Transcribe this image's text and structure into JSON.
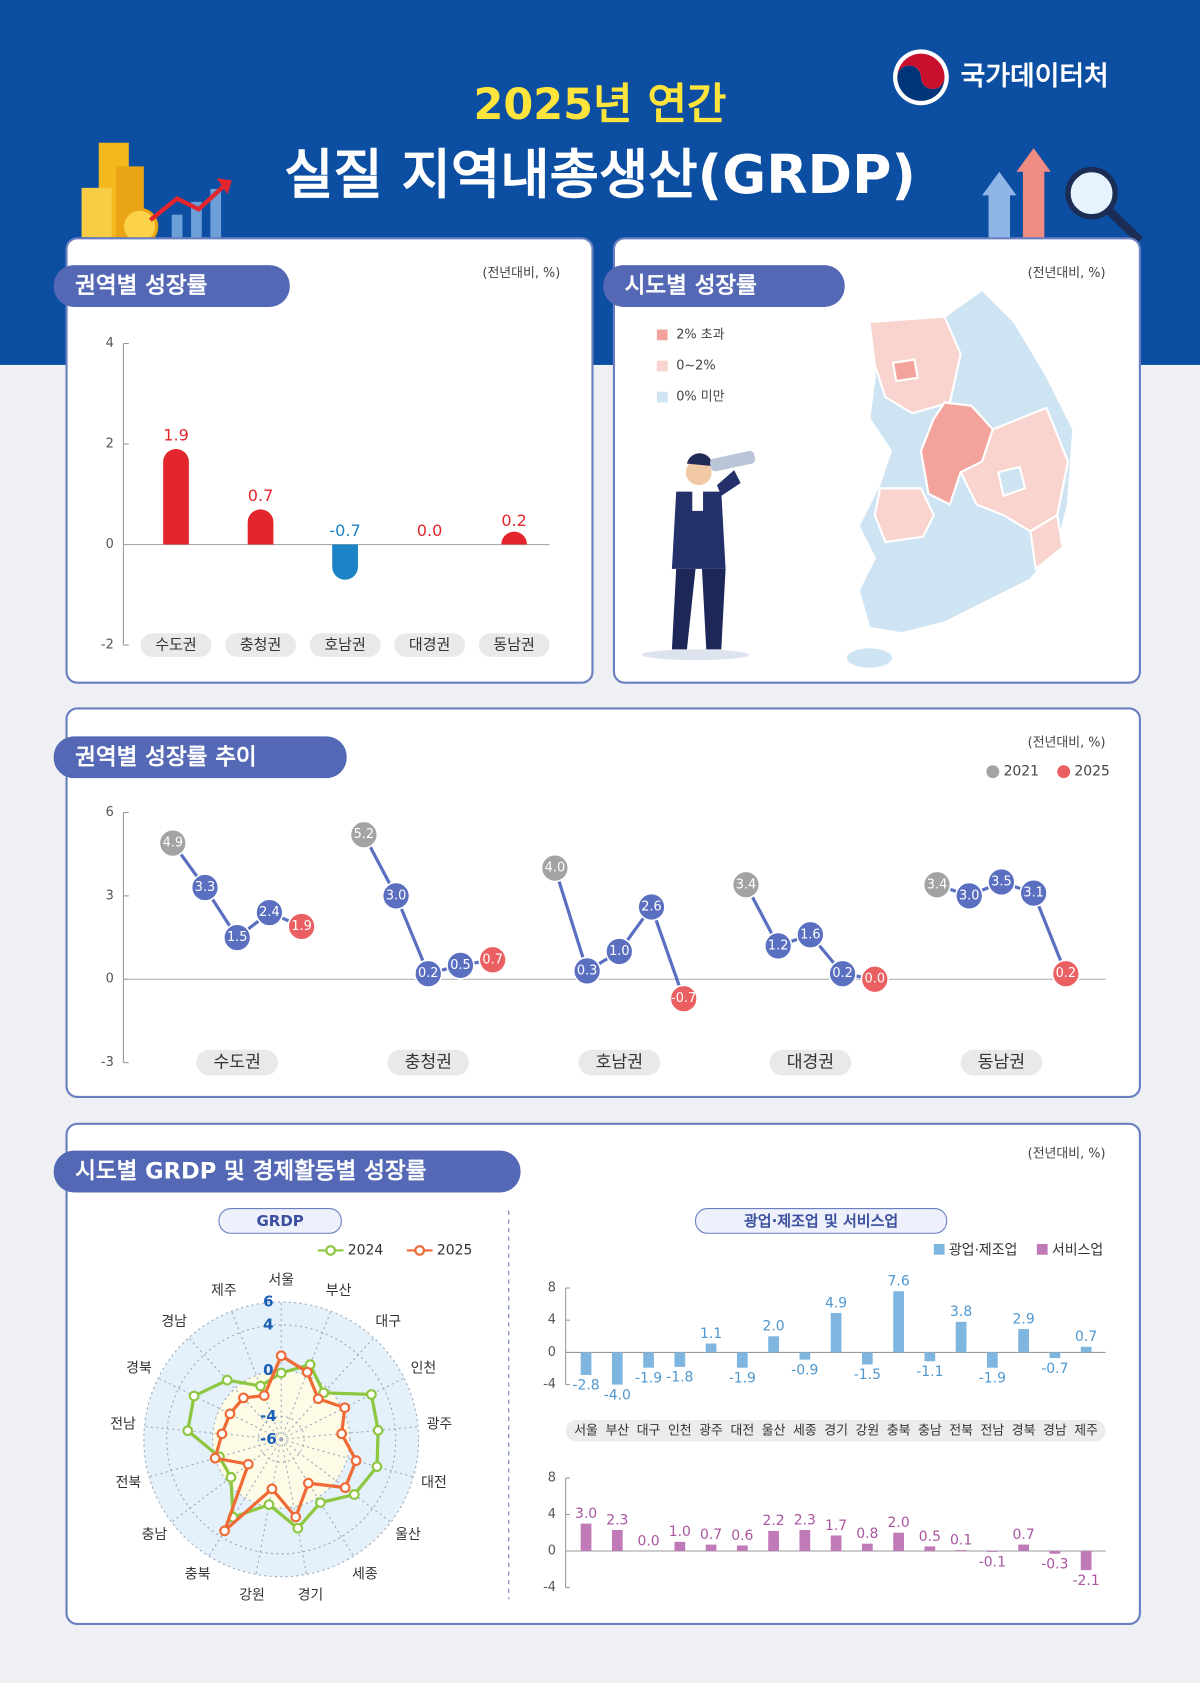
{
  "header": {
    "subtitle": "2025년 연간",
    "title": "실질 지역내총생산(GRDP)",
    "logo": "국가데이터처"
  },
  "map": {
    "title": "시도별 성장률",
    "unit": "(전년대비, %)",
    "legend": [
      {
        "label": "2% 초과",
        "color": "#f4a39c"
      },
      {
        "label": "0~2%",
        "color": "#f9d3cd"
      },
      {
        "label": "0% 미만",
        "color": "#cfe4f3"
      }
    ]
  },
  "chart_data": [
    {
      "type": "bar",
      "title": "권역별 성장률",
      "unit": "(전년대비, %)",
      "categories": [
        "수도권",
        "충청권",
        "호남권",
        "대경권",
        "동남권"
      ],
      "values": [
        1.9,
        0.7,
        -0.7,
        0.0,
        0.2
      ],
      "value_labels": [
        "1.9",
        "0.7",
        "-0.7",
        "0.0",
        "0.2"
      ],
      "color": "#e3262e",
      "negative_color": "#1b83c6",
      "ylim": [
        -2,
        4
      ],
      "yticks": [
        -2,
        0,
        2,
        4
      ]
    },
    {
      "type": "line",
      "title": "권역별 성장률 추이",
      "unit": "(전년대비, %)",
      "categories": [
        "수도권",
        "충청권",
        "호남권",
        "대경권",
        "동남권"
      ],
      "line_color": "#5b6fc0",
      "series": [
        {
          "name": "2021",
          "color": "#a3a3a3",
          "values": [
            4.9,
            5.2,
            4.0,
            3.4,
            3.4
          ],
          "value_labels": [
            "4.9",
            "5.2",
            "4.0",
            "3.4",
            "3.4"
          ]
        },
        {
          "color": "#5b6fc0",
          "values": [
            3.3,
            3.0,
            0.3,
            1.2,
            3.0
          ],
          "value_labels": [
            "3.3",
            "3.0",
            "0.3",
            "1.2",
            "3.0"
          ]
        },
        {
          "color": "#5b6fc0",
          "values": [
            1.5,
            0.2,
            1.0,
            1.6,
            3.5
          ],
          "value_labels": [
            "1.5",
            "0.2",
            "1.0",
            "1.6",
            "3.5"
          ]
        },
        {
          "color": "#5b6fc0",
          "values": [
            2.4,
            0.5,
            2.6,
            0.2,
            3.1
          ],
          "value_labels": [
            "2.4",
            "0.5",
            "2.6",
            "0.2",
            "3.1"
          ]
        },
        {
          "name": "2025",
          "color": "#ea5f62",
          "values": [
            1.9,
            0.7,
            -0.7,
            0.0,
            0.2
          ],
          "value_labels": [
            "1.9",
            "0.7",
            "-0.7",
            "0.0",
            "0.2"
          ]
        }
      ],
      "ylim": [
        -3,
        6
      ],
      "yticks": [
        -3,
        0,
        3,
        6
      ]
    },
    {
      "type": "radar",
      "title": "시도별 GRDP 및 경제활동별 성장률",
      "unit": "(전년대비, %)",
      "subtitle": "GRDP",
      "categories": [
        "서울",
        "부산",
        "대구",
        "인천",
        "광주",
        "대전",
        "울산",
        "세종",
        "경기",
        "강원",
        "충북",
        "충남",
        "전북",
        "전남",
        "경북",
        "경남",
        "제주"
      ],
      "series": [
        {
          "name": "2024",
          "color": "#8dc63f",
          "values": [
            -0.2,
            1.0,
            -0.5,
            2.8,
            2.5,
            2.7,
            2.0,
            0.5,
            1.9,
            -0.2,
            2.0,
            -0.5,
            -0.4,
            2.2,
            2.5,
            1.0,
            -1.0
          ]
        },
        {
          "name": "2025",
          "color": "#ef6a35",
          "values": [
            1.3,
            0.3,
            -1.2,
            0.2,
            -0.7,
            0.8,
            1.0,
            -1.5,
            0.9,
            -1.6,
            3.4,
            -2.4,
            0.0,
            -0.8,
            -1.0,
            -1.1,
            -1.9
          ]
        }
      ],
      "ylim": [
        -6,
        6
      ],
      "yticks": [
        -6,
        -4,
        0,
        4,
        6
      ]
    },
    {
      "type": "bar",
      "subtitle": "광업·제조업 및 서비스업",
      "categories": [
        "서울",
        "부산",
        "대구",
        "인천",
        "광주",
        "대전",
        "울산",
        "세종",
        "경기",
        "강원",
        "충북",
        "충남",
        "전북",
        "전남",
        "경북",
        "경남",
        "제주"
      ],
      "series": [
        {
          "name": "광업·제조업",
          "color": "#7fb6e0",
          "label_color": "#4f97cf",
          "values": [
            -2.8,
            -4.0,
            -1.9,
            -1.8,
            1.1,
            -1.9,
            2.0,
            -0.9,
            4.9,
            -1.5,
            7.6,
            -1.1,
            3.8,
            -1.9,
            2.9,
            -0.7,
            0.7
          ],
          "value_labels": [
            "-2.8",
            "-4.0",
            "-1.9",
            "-1.8",
            "1.1",
            "-1.9",
            "2.0",
            "-0.9",
            "4.9",
            "-1.5",
            "7.6",
            "-1.1",
            "3.8",
            "-1.9",
            "2.9",
            "-0.7",
            "0.7"
          ]
        },
        {
          "name": "서비스업",
          "color": "#c07ab8",
          "label_color": "#a9559f",
          "values": [
            3.0,
            2.3,
            0.0,
            1.0,
            0.7,
            0.6,
            2.2,
            2.3,
            1.7,
            0.8,
            2.0,
            0.5,
            0.1,
            -0.1,
            0.7,
            -0.3,
            -2.1
          ],
          "value_labels": [
            "3.0",
            "2.3",
            "0.0",
            "1.0",
            "0.7",
            "0.6",
            "2.2",
            "2.3",
            "1.7",
            "0.8",
            "2.0",
            "0.5",
            "0.1",
            "-0.1",
            "0.7",
            "-0.3",
            "-2.1"
          ]
        }
      ],
      "ylim": [
        -4,
        8
      ],
      "yticks": [
        -4,
        0,
        4,
        8
      ]
    }
  ]
}
